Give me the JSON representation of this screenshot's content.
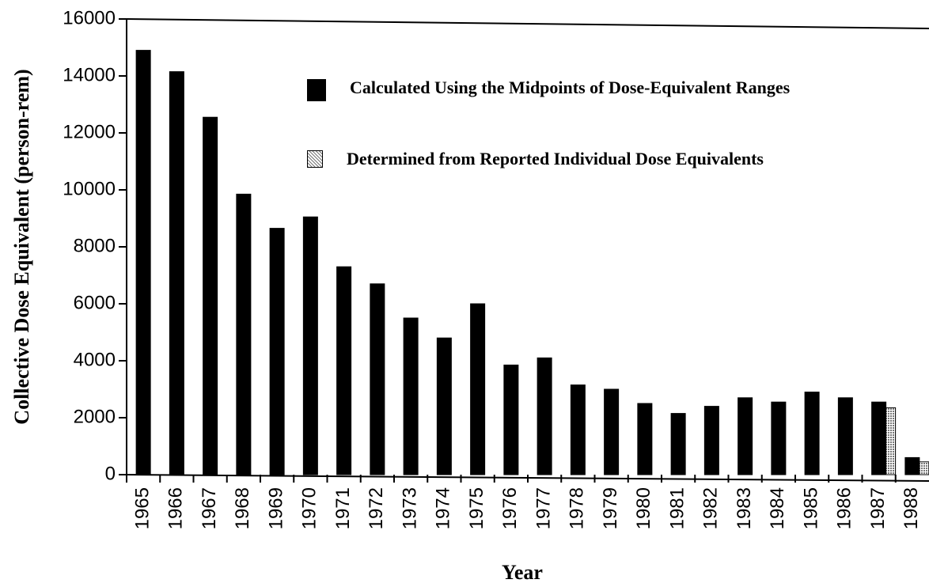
{
  "chart_data": {
    "type": "bar",
    "x_label": "Year",
    "y_label": "Collective Dose Equivalent (person-rem)",
    "categories": [
      "1965",
      "1966",
      "1967",
      "1968",
      "1969",
      "1970",
      "1971",
      "1972",
      "1973",
      "1974",
      "1975",
      "1976",
      "1977",
      "1978",
      "1979",
      "1980",
      "1981",
      "1982",
      "1983",
      "1984",
      "1985",
      "1986",
      "1987",
      "1988"
    ],
    "series": [
      {
        "name": "Calculated Using the Midpoints of Dose-Equivalent Ranges",
        "color": "#000000",
        "values": [
          14900,
          14150,
          12550,
          9850,
          8650,
          9050,
          7300,
          6700,
          5500,
          4800,
          6000,
          3850,
          4100,
          3150,
          3000,
          2500,
          2150,
          2400,
          2700,
          2550,
          2900,
          2700,
          2550,
          600
        ]
      },
      {
        "name": "Determined from Reported Individual Dose Equivalents",
        "color": "#777777",
        "values": [
          null,
          null,
          null,
          null,
          null,
          null,
          null,
          null,
          null,
          null,
          null,
          null,
          null,
          null,
          null,
          null,
          null,
          null,
          null,
          null,
          null,
          null,
          2350,
          450
        ]
      }
    ],
    "ylim": [
      0,
      16000
    ],
    "yticks": [
      0,
      2000,
      4000,
      6000,
      8000,
      10000,
      12000,
      14000,
      16000
    ]
  }
}
